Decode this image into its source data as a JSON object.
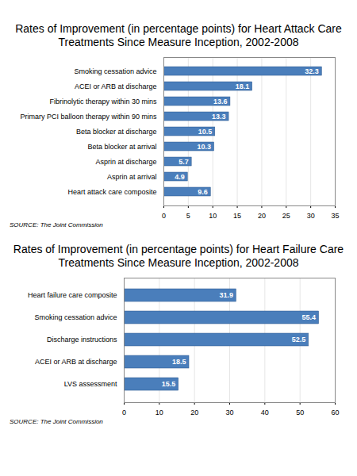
{
  "chart_data": [
    {
      "type": "bar",
      "orientation": "horizontal",
      "title": "Rates of Improvement (in percentage points) for Heart Attack Care Treatments Since Measure Inception, 2002-2008",
      "categories": [
        "Smoking cessation advice",
        "ACEI or ARB at discharge",
        "Fibrinolytic therapy within 30 mins",
        "Primary PCI balloon therapy within 90 mins",
        "Beta blocker at discharge",
        "Beta blocker at arrival",
        "Asprin at discharge",
        "Asprin at arrival",
        "Heart attack care composite"
      ],
      "values": [
        32.3,
        18.1,
        13.6,
        13.3,
        10.5,
        10.3,
        5.7,
        4.9,
        9.6
      ],
      "color": "#4a7ebb",
      "xlim": [
        0,
        35
      ],
      "xticks": [
        0,
        5,
        10,
        15,
        20,
        25,
        30,
        35
      ],
      "grid": true,
      "data_labels": true,
      "source": "SOURCE: The Joint Commission"
    },
    {
      "type": "bar",
      "orientation": "horizontal",
      "title": "Rates of Improvement (in percentage points) for Heart Failure Care Treatments Since Measure Inception, 2002-2008",
      "categories": [
        "Heart failure care composite",
        "Smoking cessation advice",
        "Discharge instructions",
        "ACEI or ARB at discharge",
        "LVS assessment"
      ],
      "values": [
        31.9,
        55.4,
        52.5,
        18.5,
        15.5
      ],
      "color": "#4a7ebb",
      "xlim": [
        0,
        60
      ],
      "xticks": [
        0,
        10,
        20,
        30,
        40,
        50,
        60
      ],
      "grid": true,
      "data_labels": true,
      "source": "SOURCE: The Joint Commission"
    }
  ]
}
